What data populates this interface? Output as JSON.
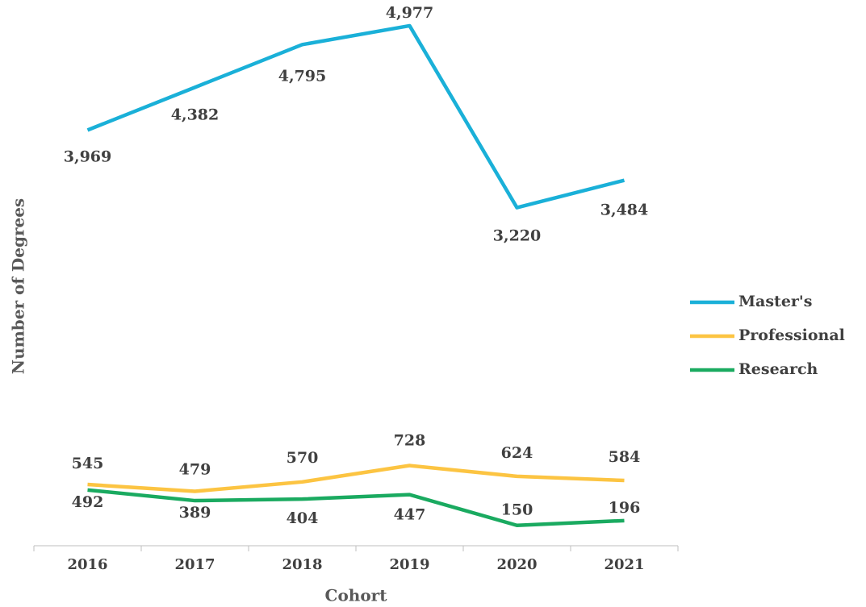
{
  "chart_data": {
    "type": "line",
    "x_label": "Cohort",
    "y_label": "Number of Degrees",
    "categories": [
      "2016",
      "2017",
      "2018",
      "2019",
      "2020",
      "2021"
    ],
    "series": [
      {
        "name": "Master's",
        "color": "#1ab0d8",
        "values": [
          3969,
          4382,
          4795,
          4977,
          3220,
          3484
        ],
        "value_labels": [
          "3,969",
          "4,382",
          "4,795",
          "4,977",
          "3,220",
          "3,484"
        ]
      },
      {
        "name": "Professional",
        "color": "#fcc442",
        "values": [
          545,
          479,
          570,
          728,
          624,
          584
        ]
      },
      {
        "name": "Research",
        "color": "#1aaa60",
        "values": [
          492,
          389,
          404,
          447,
          150,
          196
        ]
      }
    ],
    "ylim": [
      0,
      5000
    ],
    "legend": "right",
    "grid": false
  }
}
